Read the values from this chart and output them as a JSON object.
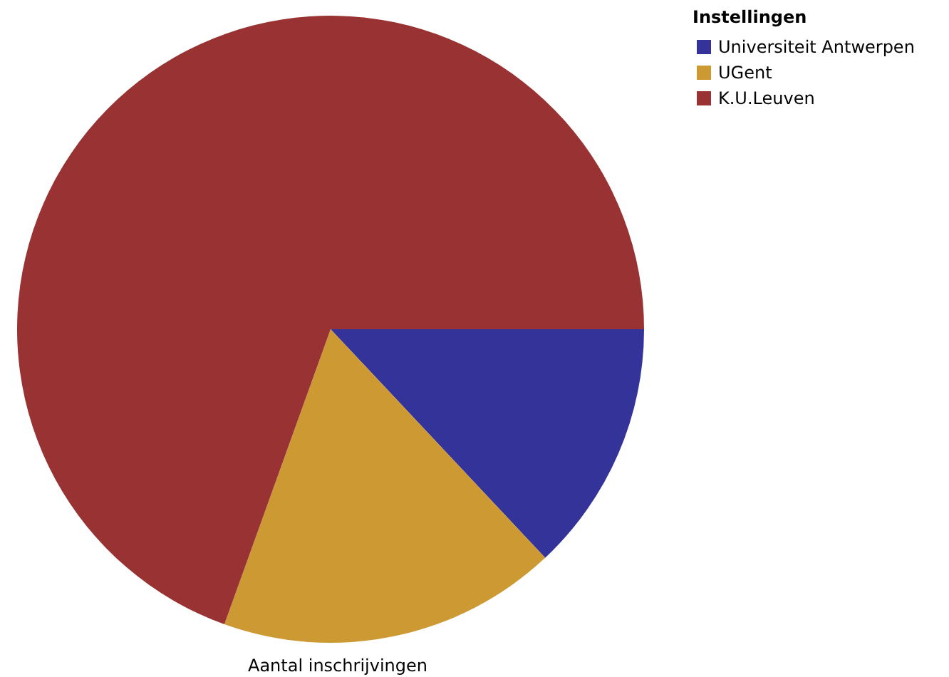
{
  "chart_data": {
    "type": "pie",
    "xlabel": "Aantal inschrijvingen",
    "legend_title": "Instellingen",
    "legend": "top right",
    "categories": [
      "Universiteit Antwerpen",
      "UGent",
      "K.U.Leuven"
    ],
    "values": [
      13,
      17.5,
      69.5
    ],
    "colors": [
      "#333399",
      "#cc9933",
      "#993333"
    ]
  }
}
